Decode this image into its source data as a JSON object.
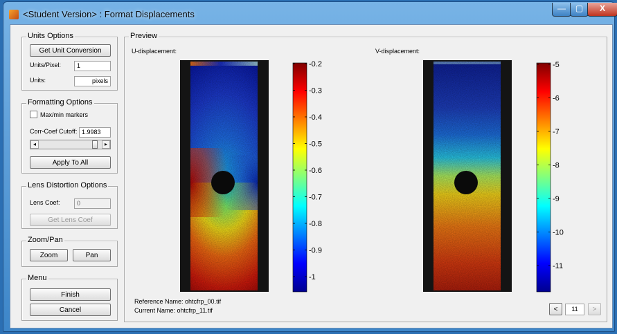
{
  "window": {
    "title": "<Student Version> : Format Displacements",
    "min_symbol": "—",
    "max_symbol": "▢",
    "close_symbol": "X"
  },
  "units": {
    "title": "Units Options",
    "get_button": "Get Unit Conversion",
    "units_per_pixel_label": "Units/Pixel:",
    "units_per_pixel_value": "1",
    "units_label": "Units:",
    "units_value": "pixels"
  },
  "formatting": {
    "title": "Formatting Options",
    "maxmin_label": "Max/min markers",
    "maxmin_checked": false,
    "cutoff_label": "Corr-Coef Cutoff:",
    "cutoff_value": "1.9983",
    "slider_left": "◂",
    "slider_right": "▸",
    "slider_position": 0.9,
    "apply_button": "Apply To All"
  },
  "lens": {
    "title": "Lens Distortion Options",
    "coef_label": "Lens Coef:",
    "coef_value": "0",
    "get_button": "Get Lens Coef"
  },
  "zoompan": {
    "title": "Zoom/Pan",
    "zoom_button": "Zoom",
    "pan_button": "Pan"
  },
  "menu": {
    "title": "Menu",
    "finish_button": "Finish",
    "cancel_button": "Cancel"
  },
  "preview": {
    "title": "Preview",
    "u_label": "U-displacement:",
    "v_label": "V-displacement:",
    "u_ticks": [
      "-0.2",
      "-0.3",
      "-0.4",
      "-0.5",
      "-0.6",
      "-0.7",
      "-0.8",
      "-0.9",
      "-1"
    ],
    "v_ticks": [
      "-5",
      "-6",
      "-7",
      "-8",
      "-9",
      "-10",
      "-11"
    ],
    "reference_name": "Reference Name: ohtcfrp_00.tif",
    "current_name": "Current Name: ohtcfrp_11.tif",
    "prev_button": "<",
    "frame_value": "11",
    "next_button": ">"
  },
  "colors": {
    "jet_dark_blue": "#00008f",
    "jet_dark_red": "#800000",
    "specimen_border": "#141414"
  }
}
